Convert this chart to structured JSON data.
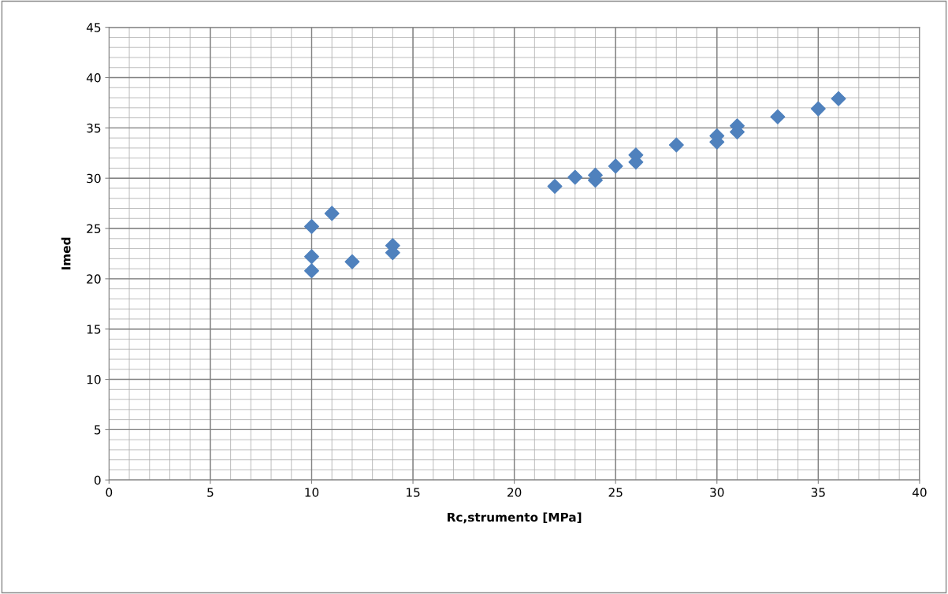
{
  "chart_data": {
    "type": "scatter",
    "xlabel": "Rc,strumento [MPa]",
    "ylabel": "Imed",
    "x": [
      10,
      10,
      10,
      11,
      12,
      14,
      14,
      22,
      23,
      24,
      24,
      25,
      26,
      26,
      28,
      30,
      30,
      31,
      31,
      33,
      35,
      36
    ],
    "series": [
      {
        "color": "#4f81bd",
        "values": [
          25.2,
          22.2,
          20.8,
          26.5,
          21.7,
          23.3,
          22.6,
          29.2,
          30.1,
          29.8,
          30.3,
          31.2,
          31.6,
          32.3,
          33.3,
          33.6,
          34.2,
          34.6,
          35.2,
          36.1,
          36.9,
          37.9
        ]
      }
    ],
    "xlim": [
      0,
      40
    ],
    "xticks": [
      0,
      5,
      10,
      15,
      20,
      25,
      30,
      35,
      40
    ],
    "ylim": [
      0,
      45
    ],
    "yticks": [
      0,
      5,
      10,
      15,
      20,
      25,
      30,
      35,
      40,
      45
    ],
    "grid": true,
    "marker": "diamond",
    "legend": false
  }
}
